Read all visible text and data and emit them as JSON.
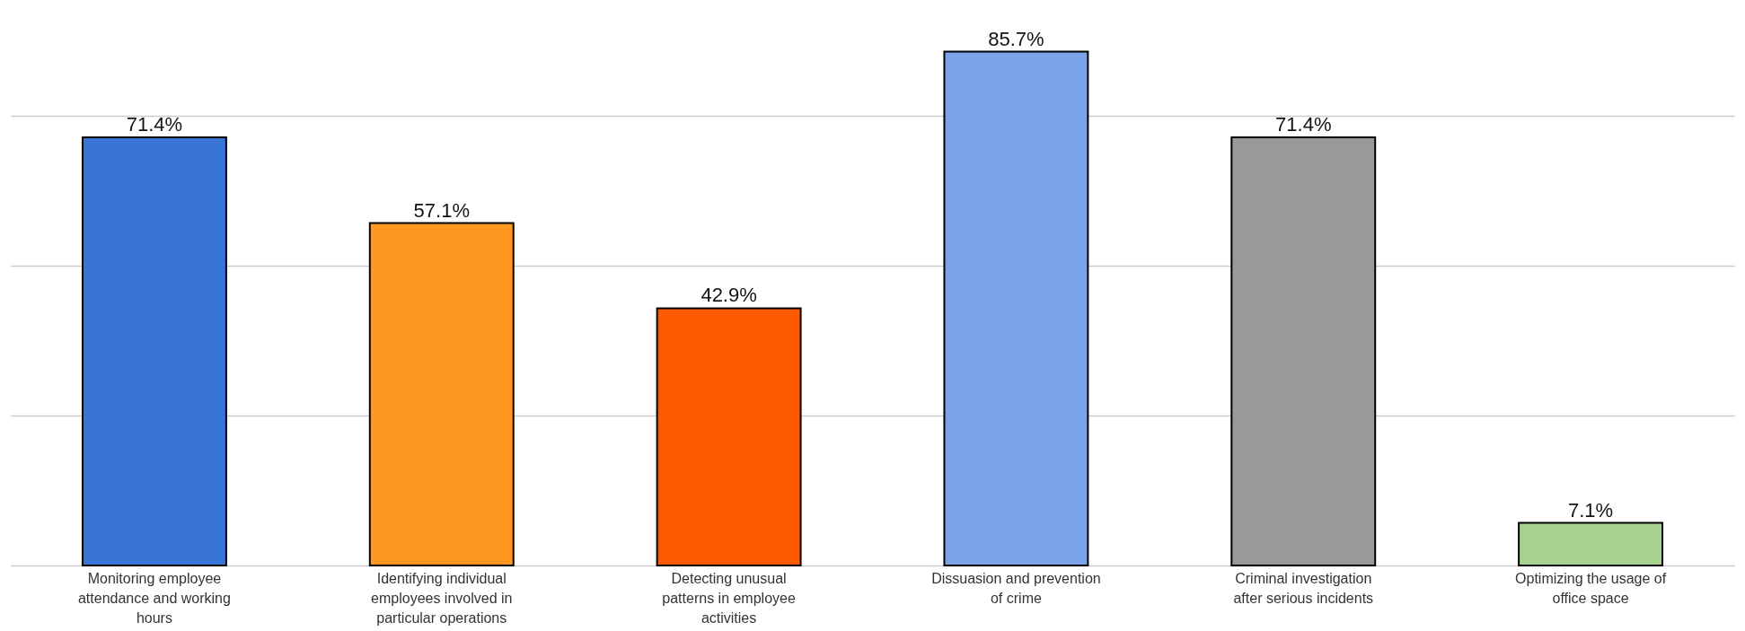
{
  "chart_data": {
    "type": "bar",
    "categories": [
      "Monitoring employee attendance and working hours",
      "Identifying individual employees involved in particular operations",
      "Detecting unusual patterns in employee activities",
      "Dissuasion and prevention of crime",
      "Criminal investigation after serious incidents",
      "Optimizing the usage of office space"
    ],
    "values": [
      71.4,
      57.1,
      42.9,
      85.7,
      71.4,
      7.1
    ],
    "value_labels": [
      "71.4%",
      "57.1%",
      "42.9%",
      "85.7%",
      "71.4%",
      "7.1%"
    ],
    "colors": [
      "#3875d7",
      "#ff9822",
      "#ff5a00",
      "#7ba4e8",
      "#999999",
      "#a7d38e"
    ],
    "yticks": [
      0,
      25,
      50,
      75
    ],
    "grid": "y",
    "tick_labels": "x"
  }
}
